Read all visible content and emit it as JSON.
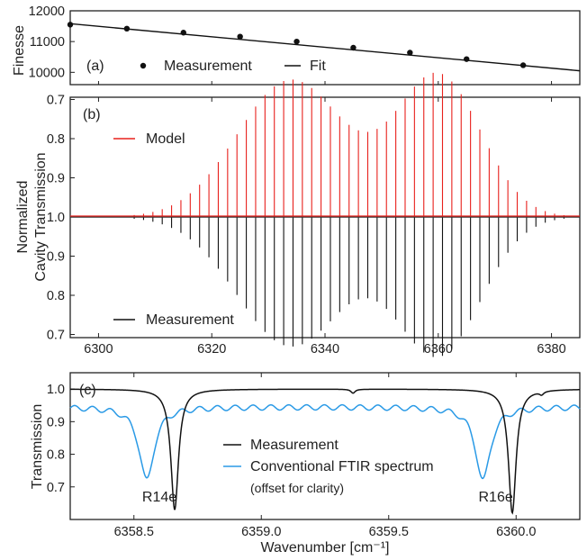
{
  "chart_data": [
    {
      "panel_label": "(a)",
      "type": "scatter",
      "ylabel": "Finesse",
      "xlim": [
        6295,
        6385
      ],
      "ylim": [
        9600,
        12000
      ],
      "yticks": [
        10000,
        11000,
        12000
      ],
      "measurement": {
        "name": "Measurement",
        "color": "#111111",
        "x": [
          6295,
          6305,
          6315,
          6325,
          6335,
          6345,
          6355,
          6365,
          6375
        ],
        "y": [
          11550,
          11420,
          11290,
          11160,
          11000,
          10800,
          10640,
          10430,
          10230
        ]
      },
      "fit": {
        "name": "Fit",
        "color": "#111111",
        "x": [
          6295,
          6385
        ],
        "y": [
          11580,
          10050
        ]
      },
      "legend": [
        "Measurement",
        "Fit"
      ]
    },
    {
      "panel_label": "(b)",
      "type": "line",
      "ylabel_lines": [
        "Normalized",
        "Cavity Transmission"
      ],
      "xlim": [
        6295,
        6385
      ],
      "xticks": [
        6300,
        6320,
        6340,
        6360,
        6380
      ],
      "ytick_labels_top": [
        "0.7",
        "0.8",
        "0.9",
        "1.0"
      ],
      "ytick_labels_bottom": [
        "0.9",
        "0.8",
        "0.7"
      ],
      "model": {
        "name": "Model",
        "color": "#e8201c",
        "band_centers": [
          6334,
          6360
        ],
        "band_peak_depths": [
          0.35,
          0.36
        ],
        "band_widths": [
          9.5,
          7.5
        ],
        "line_spacing": 1.65
      },
      "measurement": {
        "name": "Measurement",
        "color": "#111111",
        "band_centers": [
          6334,
          6360
        ],
        "band_peak_depths": [
          0.33,
          0.35
        ],
        "band_widths": [
          9.5,
          7.5
        ],
        "line_spacing": 1.65
      },
      "baseline": 1.0
    },
    {
      "panel_label": "(c)",
      "type": "line",
      "ylabel": "Transmission",
      "xlabel": "Wavenumber [cm⁻¹]",
      "xlim": [
        6358.25,
        6360.25
      ],
      "ylim": [
        0.6,
        1.05
      ],
      "xticks": [
        6358.5,
        6359.0,
        6359.5,
        6360.0
      ],
      "yticks": [
        0.7,
        0.8,
        0.9,
        1.0
      ],
      "measurement": {
        "name": "Measurement",
        "color": "#111111",
        "baseline": 1.0,
        "lines": [
          {
            "center": 6358.66,
            "depth": 0.37,
            "width": 0.018
          },
          {
            "center": 6359.985,
            "depth": 0.38,
            "width": 0.018
          },
          {
            "center": 6359.36,
            "depth": 0.012,
            "width": 0.01
          },
          {
            "center": 6360.1,
            "depth": 0.01,
            "width": 0.01
          }
        ]
      },
      "ftir": {
        "name": "Conventional FTIR spectrum",
        "note": "(offset for clarity)",
        "color": "#2a9ae6",
        "baseline": 0.945,
        "lines": [
          {
            "center": 6358.55,
            "depth": 0.225,
            "width": 0.035
          },
          {
            "center": 6359.87,
            "depth": 0.225,
            "width": 0.035
          }
        ],
        "ripple_amplitude": 0.008,
        "ripple_period": 0.07
      },
      "line_labels": [
        {
          "text": "R14e",
          "x": 6358.6
        },
        {
          "text": "R16e",
          "x": 6359.92
        }
      ]
    }
  ]
}
